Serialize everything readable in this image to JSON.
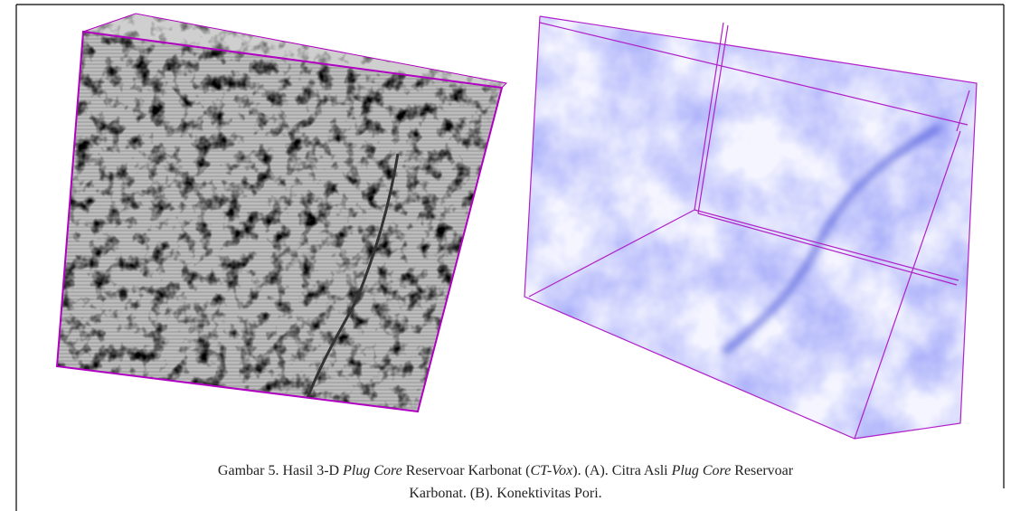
{
  "figure": {
    "caption": {
      "line1": [
        "Gambar 5. Hasil 3-D ",
        "Plug Core",
        " Reservoar Karbonat (",
        "CT-Vox",
        "). (A). Citra Asli ",
        "Plug Core",
        " Reservoar"
      ],
      "line2": [
        "Karbonat. (B). Konektivitas Pori."
      ]
    }
  }
}
